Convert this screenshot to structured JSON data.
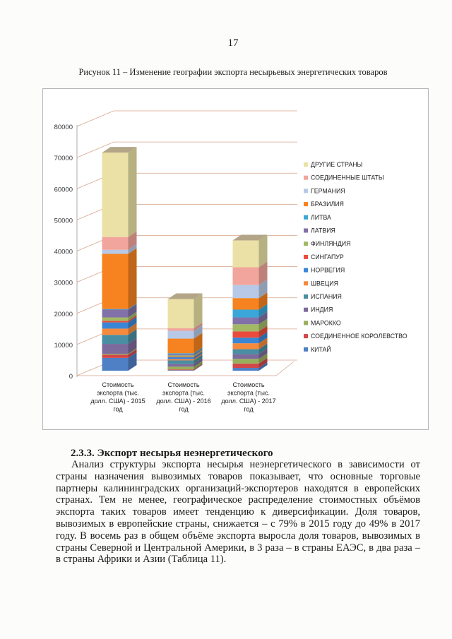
{
  "page_number": "17",
  "caption": "Рисунок 11 – Изменение географии экспорта несырьевых энергетических товаров",
  "chart_data": {
    "type": "bar",
    "stacked": true,
    "three_d": true,
    "categories": [
      "Стоимость экспорта (тыс. долл. США) - 2015 год",
      "Стоимость экспорта (тыс. долл. США) - 2016 год",
      "Стоимость экспорта (тыс. долл. США) - 2017 год"
    ],
    "ylim": [
      0,
      80000
    ],
    "yticks": [
      0,
      10000,
      20000,
      30000,
      40000,
      50000,
      60000,
      70000,
      80000
    ],
    "grid": true,
    "legend_position": "right",
    "series": [
      {
        "name": "КИТАЙ",
        "color": "#4f7fc4",
        "values": [
          4100,
          150,
          900
        ]
      },
      {
        "name": "СОЕДИНЕННОЕ КОРОЛЕВСТВО",
        "color": "#d2474a",
        "values": [
          1000,
          250,
          1400
        ]
      },
      {
        "name": "МАРОККО",
        "color": "#98b05c",
        "values": [
          300,
          900,
          1500
        ]
      },
      {
        "name": "ИНДИЯ",
        "color": "#7d6a9c",
        "values": [
          3200,
          900,
          1500
        ]
      },
      {
        "name": "ИСПАНИЯ",
        "color": "#4a8ea3",
        "values": [
          2900,
          1100,
          1600
        ]
      },
      {
        "name": "ШВЕЦИЯ",
        "color": "#f58a3c",
        "values": [
          2000,
          400,
          1900
        ]
      },
      {
        "name": "НОРВЕГИЯ",
        "color": "#3a86d6",
        "values": [
          2000,
          600,
          1800
        ]
      },
      {
        "name": "СИНГАПУР",
        "color": "#ea4b3c",
        "values": [
          500,
          200,
          2000
        ]
      },
      {
        "name": "ФИНЛЯНДИЯ",
        "color": "#a2b865",
        "values": [
          1100,
          400,
          2300
        ]
      },
      {
        "name": "ЛАТВИЯ",
        "color": "#8271a8",
        "values": [
          2500,
          400,
          2200
        ]
      },
      {
        "name": "ЛИТВА",
        "color": "#3aa7d8",
        "values": [
          200,
          300,
          2500
        ]
      },
      {
        "name": "БРАЗИЛИЯ",
        "color": "#f6831f",
        "values": [
          17700,
          4700,
          3700
        ]
      },
      {
        "name": "ГЕРМАНИЯ",
        "color": "#b7c9e6",
        "values": [
          1300,
          2500,
          4200
        ]
      },
      {
        "name": "СОЕДИНЕННЫЕ ШТАТЫ",
        "color": "#f2a59c",
        "values": [
          4100,
          800,
          5700
        ]
      },
      {
        "name": "ДРУГИЕ СТРАНЫ",
        "color": "#ebe1a6",
        "values": [
          27100,
          9400,
          8600
        ]
      }
    ]
  },
  "section": {
    "heading": "2.3.3. Экспорт несырья неэнергетического",
    "paragraph": "Анализ структуры экспорта несырья неэнергетического в  зависимости от страны назначения вывозимых товаров показывает, что основные торговые партнеры калининградских организаций-экспортеров находятся в европейских странах. Тем не менее, географическое распределение стоимостных объёмов экспорта таких товаров имеет тенденцию к диверсификации. Доля товаров, вывозимых в европейские страны, снижается – с 79% в 2015 году до 49% в 2017 году. В восемь раз в общем объёме экспорта выросла доля товаров, вывозимых в страны Северной и Центральной Америки, в 3 раза – в страны ЕАЭС, в два раза – в страны Африки и Азии (Таблица 11)."
  }
}
